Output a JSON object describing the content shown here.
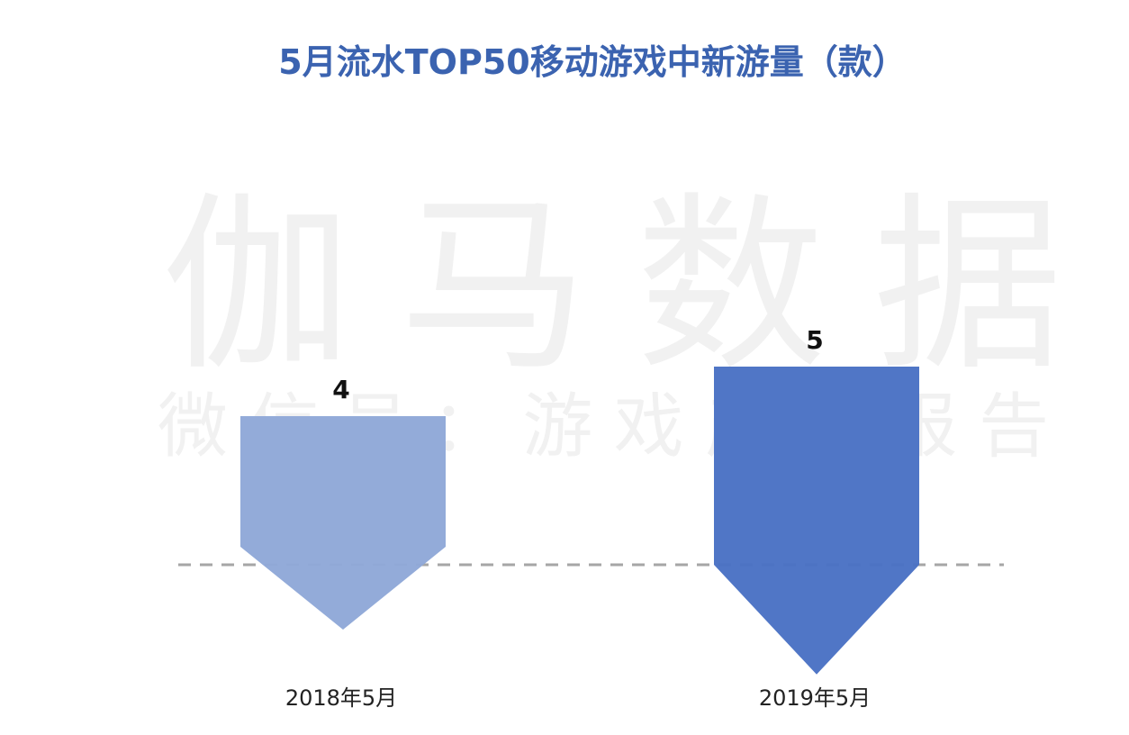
{
  "chart_data": {
    "type": "bar",
    "title": "5月流水TOP50移动游戏中新游量（款）",
    "categories": [
      "2018年5月",
      "2019年5月"
    ],
    "series": [
      {
        "values": [
          4,
          5
        ],
        "colors": [
          "#8fa8d8",
          "#4a72c4"
        ]
      }
    ],
    "data_labels": [
      "4",
      "5"
    ],
    "baseline_line": "dashed",
    "grid": false,
    "legend": "none"
  },
  "watermark": {
    "main": "伽马数据",
    "sub": "微信号：游戏产业报告"
  },
  "colors": {
    "title": "#3b63b0",
    "baseline": "#a6a6a6"
  }
}
